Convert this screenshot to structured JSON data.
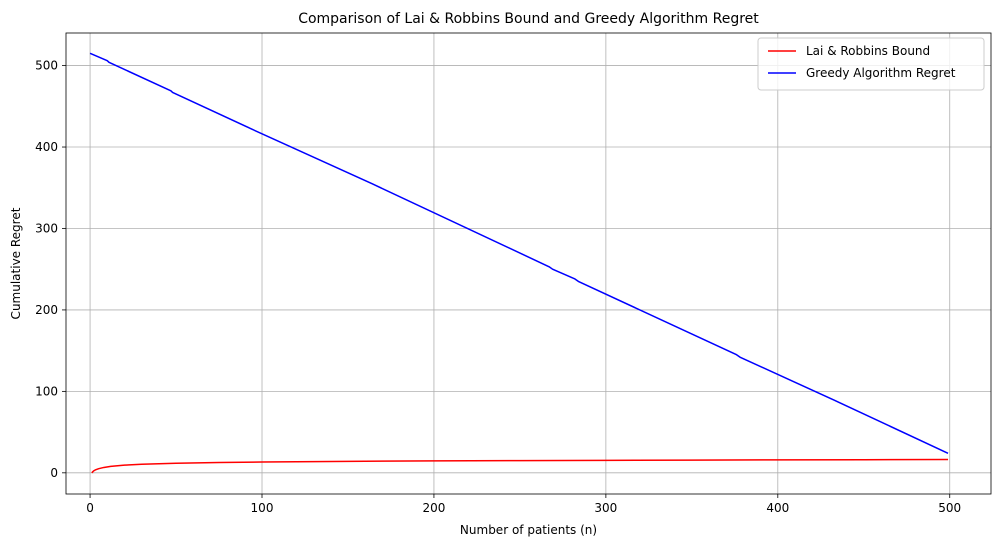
{
  "chart_data": {
    "type": "line",
    "title": "Comparison of Lai & Robbins Bound and Greedy Algorithm Regret",
    "xlabel": "Number of patients (n)",
    "ylabel": "Cumulative Regret",
    "xlim": [
      -14,
      524
    ],
    "ylim": [
      -26,
      540
    ],
    "xticks": [
      0,
      100,
      200,
      300,
      400,
      500
    ],
    "yticks": [
      0,
      100,
      200,
      300,
      400,
      500
    ],
    "grid": true,
    "legend_position": "top-right",
    "series": [
      {
        "name": "Lai & Robbins Bound",
        "color": "#ff0000",
        "x": [
          1,
          2,
          3,
          5,
          8,
          12,
          20,
          30,
          50,
          75,
          100,
          150,
          200,
          250,
          300,
          350,
          400,
          450,
          499
        ],
        "y": [
          0,
          2.2,
          3.5,
          5.1,
          6.6,
          7.9,
          9.4,
          10.6,
          11.8,
          12.7,
          13.3,
          14.1,
          14.6,
          15.0,
          15.3,
          15.6,
          15.9,
          16.1,
          16.3
        ]
      },
      {
        "name": "Greedy Algorithm Regret",
        "color": "#0000ff",
        "x": [
          0,
          10,
          11,
          47,
          48,
          92,
          94,
          164,
          166,
          267,
          269,
          282,
          284,
          376,
          378,
          433,
          435,
          499
        ],
        "y": [
          515,
          506,
          504,
          469,
          467,
          424,
          422,
          355,
          353,
          253,
          250,
          238,
          235,
          145,
          142,
          89,
          87,
          24
        ]
      }
    ]
  }
}
